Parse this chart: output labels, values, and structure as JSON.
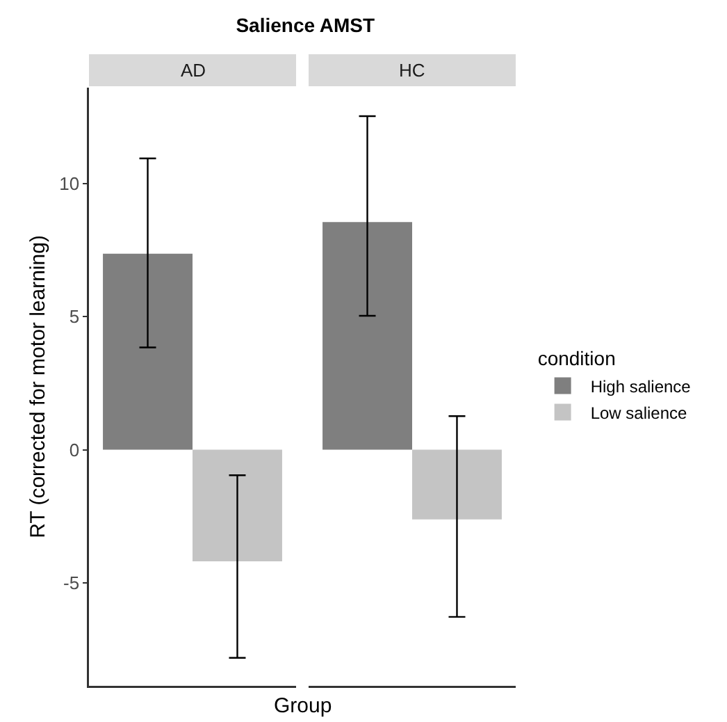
{
  "chart_data": {
    "type": "bar",
    "title": "Salience AMST",
    "xlabel": "Group",
    "ylabel": "RT (corrected for motor learning)",
    "legend_title": "condition",
    "legend": "right",
    "categories": [
      "AD",
      "HC"
    ],
    "series": [
      {
        "name": "High salience",
        "color": "#7f7f7f",
        "values": [
          7.36,
          8.55
        ],
        "errors": [
          [
            3.84,
            10.94
          ],
          [
            5.03,
            12.53
          ]
        ]
      },
      {
        "name": "Low salience",
        "color": "#c4c4c4",
        "values": [
          -4.19,
          -2.62
        ],
        "errors": [
          [
            -7.82,
            -0.96
          ],
          [
            -6.28,
            1.26
          ]
        ]
      }
    ],
    "ylim": [
      -8.87,
      13.6
    ],
    "yticks": [
      -5,
      0,
      5,
      10
    ]
  }
}
